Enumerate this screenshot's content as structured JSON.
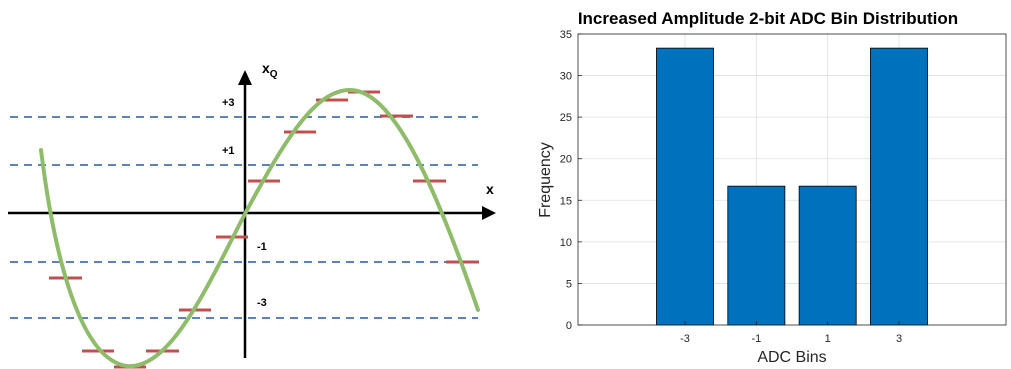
{
  "chart_data": [
    {
      "type": "line",
      "title": "",
      "axes": {
        "x_label": "x",
        "y_label": "x",
        "y_label_subscript": "Q"
      },
      "threshold_labels": [
        "+3",
        "+1",
        "-1",
        "-3"
      ],
      "colors": {
        "sine": "#8fbc6a",
        "quantized": "#c0504d",
        "thresholds": "#5b84b9",
        "axis": "#000000"
      }
    },
    {
      "type": "bar",
      "title": "Increased Amplitude 2-bit ADC Bin Distribution",
      "xlabel": "ADC Bins",
      "ylabel": "Frequency",
      "categories": [
        "-3",
        "-1",
        "1",
        "3"
      ],
      "values": [
        33.3,
        16.7,
        16.7,
        33.3
      ],
      "ylim": [
        0,
        35
      ],
      "yticks": [
        "0",
        "5",
        "10",
        "15",
        "20",
        "25",
        "30",
        "35"
      ],
      "grid": true,
      "colors": {
        "bar": "#0072bd",
        "grid": "#dfdfdf"
      }
    }
  ]
}
